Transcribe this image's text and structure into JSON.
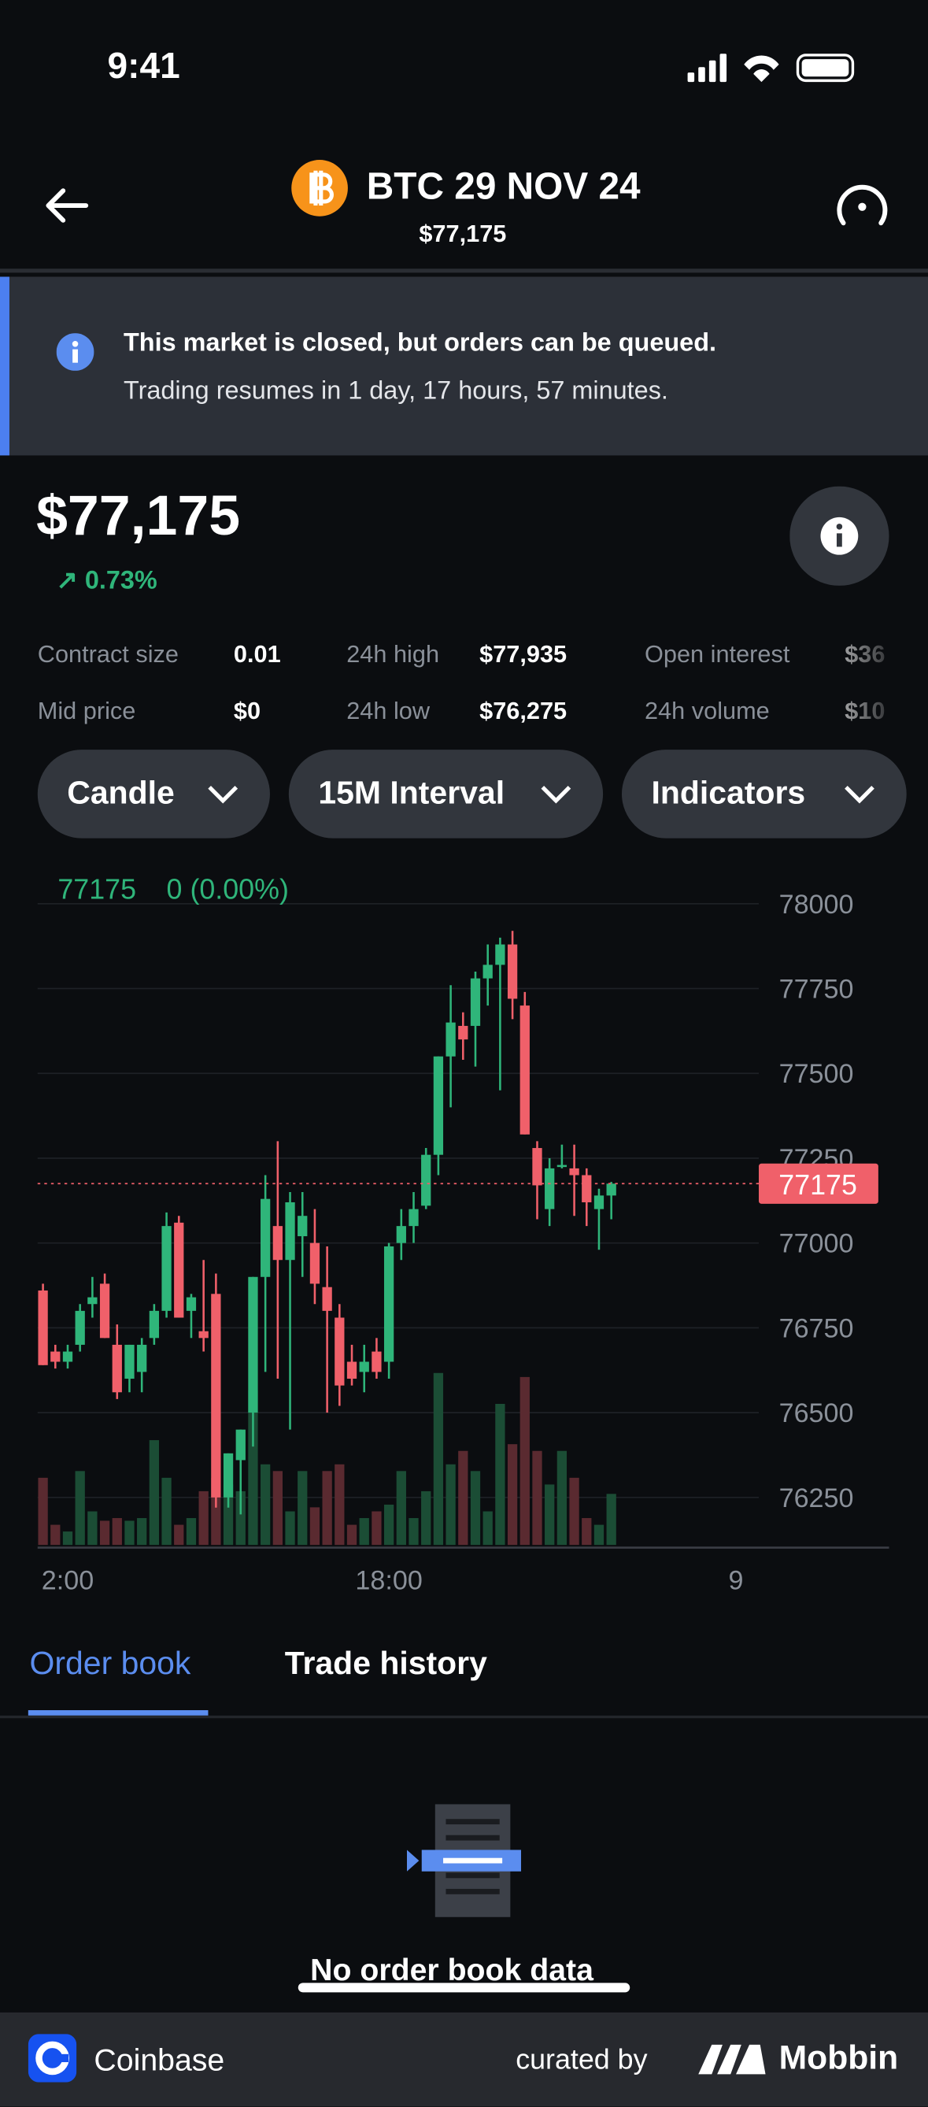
{
  "status_bar": {
    "time": "9:41"
  },
  "header": {
    "title": "BTC 29 NOV 24",
    "subtitle": "$77,175"
  },
  "banner": {
    "title": "This market is closed, but orders can be queued.",
    "text": "Trading resumes in 1 day, 17 hours, 57 minutes."
  },
  "price": {
    "value": "$77,175",
    "change": "0.73%"
  },
  "stats": [
    [
      "Contract size",
      "0.01"
    ],
    [
      "Mid price",
      "$0"
    ],
    [
      "24h high",
      "$77,935"
    ],
    [
      "24h low",
      "$76,275"
    ],
    [
      "Open interest",
      "$36"
    ],
    [
      "24h volume",
      "$10"
    ]
  ],
  "buttons": [
    "Candle",
    "15M Interval",
    "Indicators"
  ],
  "chart_data": {
    "type": "candlestick",
    "last_price": 77175,
    "change_text": "0 (0.00%)",
    "ylim": [
      76110,
      78090
    ],
    "yticks": [
      76250,
      76500,
      76750,
      77000,
      77250,
      77500,
      77750,
      78000
    ],
    "categories": [
      null,
      null,
      "2:00",
      null,
      null,
      null,
      null,
      null,
      null,
      null,
      null,
      null,
      null,
      null,
      null,
      null,
      null,
      null,
      null,
      null,
      null,
      null,
      null,
      null,
      null,
      null,
      null,
      null,
      "18:00",
      null,
      null,
      null,
      null,
      null,
      null,
      null,
      null,
      null,
      null,
      null,
      null,
      null,
      null,
      null,
      null,
      null,
      null
    ],
    "x_end_label": "9",
    "open": [
      76860,
      76680,
      76650,
      76700,
      76820,
      76880,
      76700,
      76600,
      76620,
      76720,
      76800,
      77060,
      76800,
      76740,
      76850,
      76250,
      76360,
      76500,
      76900,
      77050,
      76950,
      77020,
      77000,
      76870,
      76780,
      76650,
      76620,
      76680,
      76650,
      77000,
      77050,
      77110,
      77260,
      77550,
      77640,
      77640,
      77780,
      77820,
      77880,
      77700,
      77280,
      77100,
      77230,
      77220,
      77200,
      77100,
      77140
    ],
    "high": [
      76880,
      76700,
      76700,
      76820,
      76900,
      76910,
      76760,
      76700,
      76720,
      76820,
      77090,
      77080,
      76850,
      76950,
      76910,
      76380,
      76450,
      76900,
      77200,
      77300,
      77150,
      77150,
      77100,
      76990,
      76820,
      76700,
      76700,
      76720,
      77000,
      77100,
      77150,
      77280,
      77550,
      77760,
      77680,
      77800,
      77880,
      77900,
      77920,
      77740,
      77300,
      77250,
      77290,
      77290,
      77220,
      77160,
      77180
    ],
    "low": [
      76640,
      76630,
      76630,
      76680,
      76780,
      76720,
      76540,
      76560,
      76560,
      76700,
      76780,
      76780,
      76720,
      76680,
      76220,
      76220,
      76200,
      76400,
      76620,
      76600,
      76450,
      76900,
      76820,
      76500,
      76520,
      76580,
      76560,
      76600,
      76600,
      76950,
      77000,
      77100,
      77200,
      77400,
      77540,
      77520,
      77700,
      77450,
      77660,
      77320,
      77070,
      77050,
      77220,
      77080,
      77050,
      76980,
      77070
    ],
    "close": [
      76640,
      76650,
      76680,
      76800,
      76840,
      76720,
      76560,
      76700,
      76700,
      76800,
      77050,
      76780,
      76840,
      76720,
      76250,
      76380,
      76450,
      76900,
      77130,
      76950,
      77120,
      77080,
      76880,
      76800,
      76580,
      76600,
      76650,
      76620,
      76990,
      77050,
      77100,
      77260,
      77550,
      77650,
      77600,
      77780,
      77820,
      77880,
      77720,
      77320,
      77170,
      77220,
      77230,
      77200,
      77120,
      77140,
      77175
    ],
    "volume": [
      50,
      15,
      10,
      55,
      25,
      18,
      20,
      18,
      20,
      78,
      50,
      15,
      20,
      40,
      50,
      45,
      40,
      115,
      60,
      55,
      25,
      55,
      28,
      55,
      60,
      15,
      20,
      25,
      30,
      55,
      20,
      40,
      128,
      60,
      70,
      55,
      25,
      105,
      75,
      125,
      70,
      45,
      70,
      50,
      20,
      15,
      38
    ]
  },
  "tabs": [
    "Order book",
    "Trade history"
  ],
  "empty": {
    "text": "No order book data"
  },
  "footer": {
    "brand": "Coinbase",
    "curated": "curated by",
    "mobbin": "Mobbin"
  }
}
